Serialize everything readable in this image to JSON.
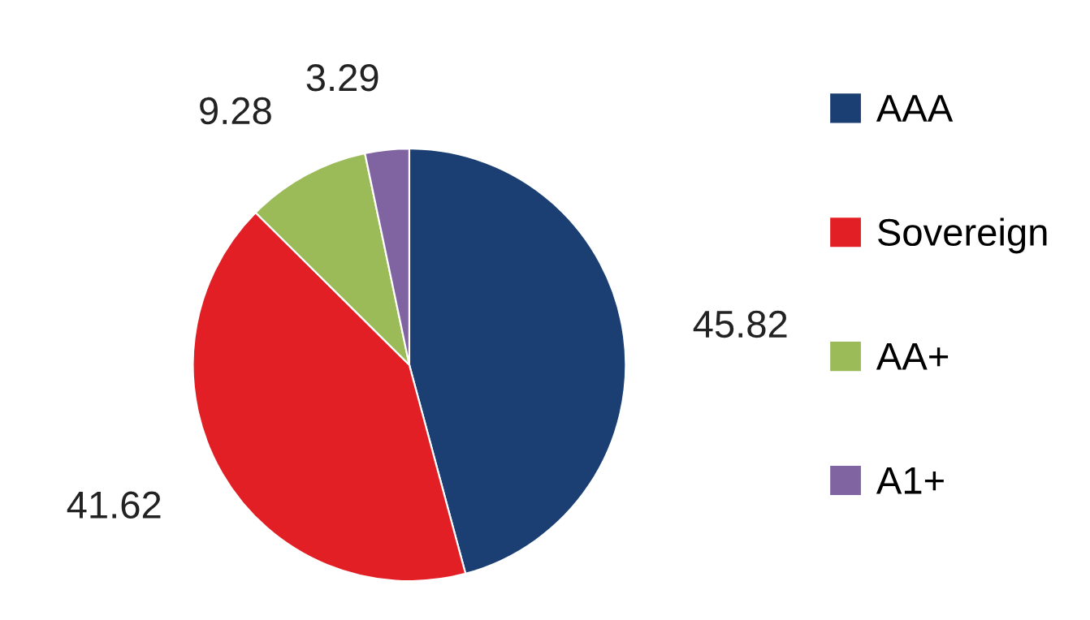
{
  "chart_data": {
    "type": "pie",
    "categories": [
      "AAA",
      "Sovereign",
      "AA+",
      "A1+"
    ],
    "values": [
      45.82,
      41.62,
      9.28,
      3.29
    ],
    "colors": [
      "#1b3f72",
      "#e31f26",
      "#9bbb59",
      "#8064a2"
    ],
    "data_labels": true,
    "legend": "right"
  }
}
